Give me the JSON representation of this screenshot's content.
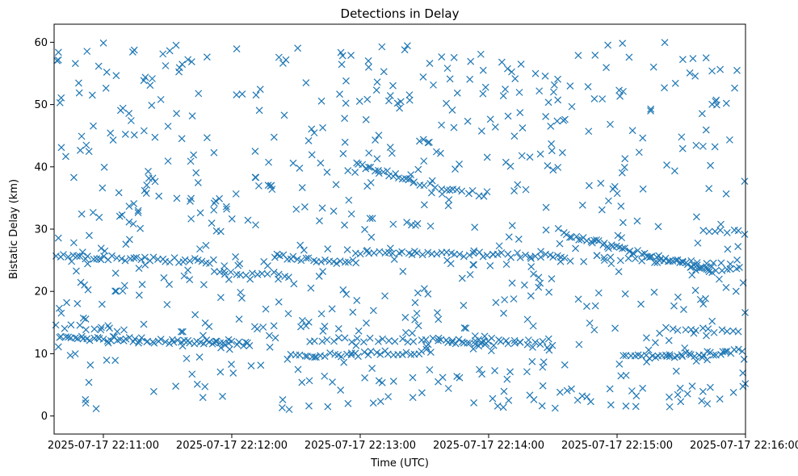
{
  "chart_data": {
    "type": "scatter",
    "title": "Detections in Delay",
    "xlabel": "Time (UTC)",
    "ylabel": "Bistatic Delay (km)",
    "x_ticks": [
      "2025-07-17 22:11:00",
      "2025-07-17 22:12:00",
      "2025-07-17 22:13:00",
      "2025-07-17 22:14:00",
      "2025-07-17 22:15:00",
      "2025-07-17 22:16:00"
    ],
    "x_tick_seconds": [
      0,
      60,
      120,
      180,
      240,
      300
    ],
    "xlim_seconds": [
      -23,
      300
    ],
    "y_ticks": [
      0,
      10,
      20,
      30,
      40,
      50,
      60
    ],
    "ylim": [
      -2.9,
      62.9
    ],
    "marker": "x",
    "color": "#1f77b4",
    "grid": false,
    "tracks": [
      {
        "x": [
          -21,
          68
        ],
        "y": [
          12.6,
          11.6
        ],
        "count": 60
      },
      {
        "x": [
          -22,
          52
        ],
        "y": [
          25.7,
          24.8
        ],
        "count": 40
      },
      {
        "x": [
          52,
          87
        ],
        "y": [
          23.2,
          22.6
        ],
        "count": 15
      },
      {
        "x": [
          80,
          118
        ],
        "y": [
          25.7,
          24.6
        ],
        "count": 22
      },
      {
        "x": [
          86,
          153
        ],
        "y": [
          9.5,
          10.4
        ],
        "count": 35
      },
      {
        "x": [
          96,
          180
        ],
        "y": [
          12.3,
          12.0
        ],
        "count": 30
      },
      {
        "x": [
          118,
          145
        ],
        "y": [
          40.3,
          37.8
        ],
        "count": 20
      },
      {
        "x": [
          145,
          178
        ],
        "y": [
          37.5,
          35.5
        ],
        "count": 14
      },
      {
        "x": [
          118,
          215
        ],
        "y": [
          26.4,
          25.6
        ],
        "count": 45
      },
      {
        "x": [
          158,
          210
        ],
        "y": [
          12.0,
          11.3
        ],
        "count": 18
      },
      {
        "x": [
          215,
          283
        ],
        "y": [
          29.2,
          23.4
        ],
        "count": 50
      },
      {
        "x": [
          230,
          300
        ],
        "y": [
          25.4,
          24.7
        ],
        "count": 20
      },
      {
        "x": [
          243,
          300
        ],
        "y": [
          9.3,
          10.4
        ],
        "count": 35
      },
      {
        "x": [
          263,
          300
        ],
        "y": [
          14.2,
          13.2
        ],
        "count": 14
      },
      {
        "x": [
          275,
          300
        ],
        "y": [
          23.8,
          23.5
        ],
        "count": 12
      },
      {
        "x": [
          280,
          300
        ],
        "y": [
          29.8,
          29.5
        ],
        "count": 8
      },
      {
        "x": [
          -22,
          10
        ],
        "y": [
          14.5,
          13.5
        ],
        "count": 10
      },
      {
        "x": [
          175,
          205
        ],
        "y": [
          12.2,
          11.8
        ],
        "count": 10
      }
    ],
    "noise_count": 700
  }
}
